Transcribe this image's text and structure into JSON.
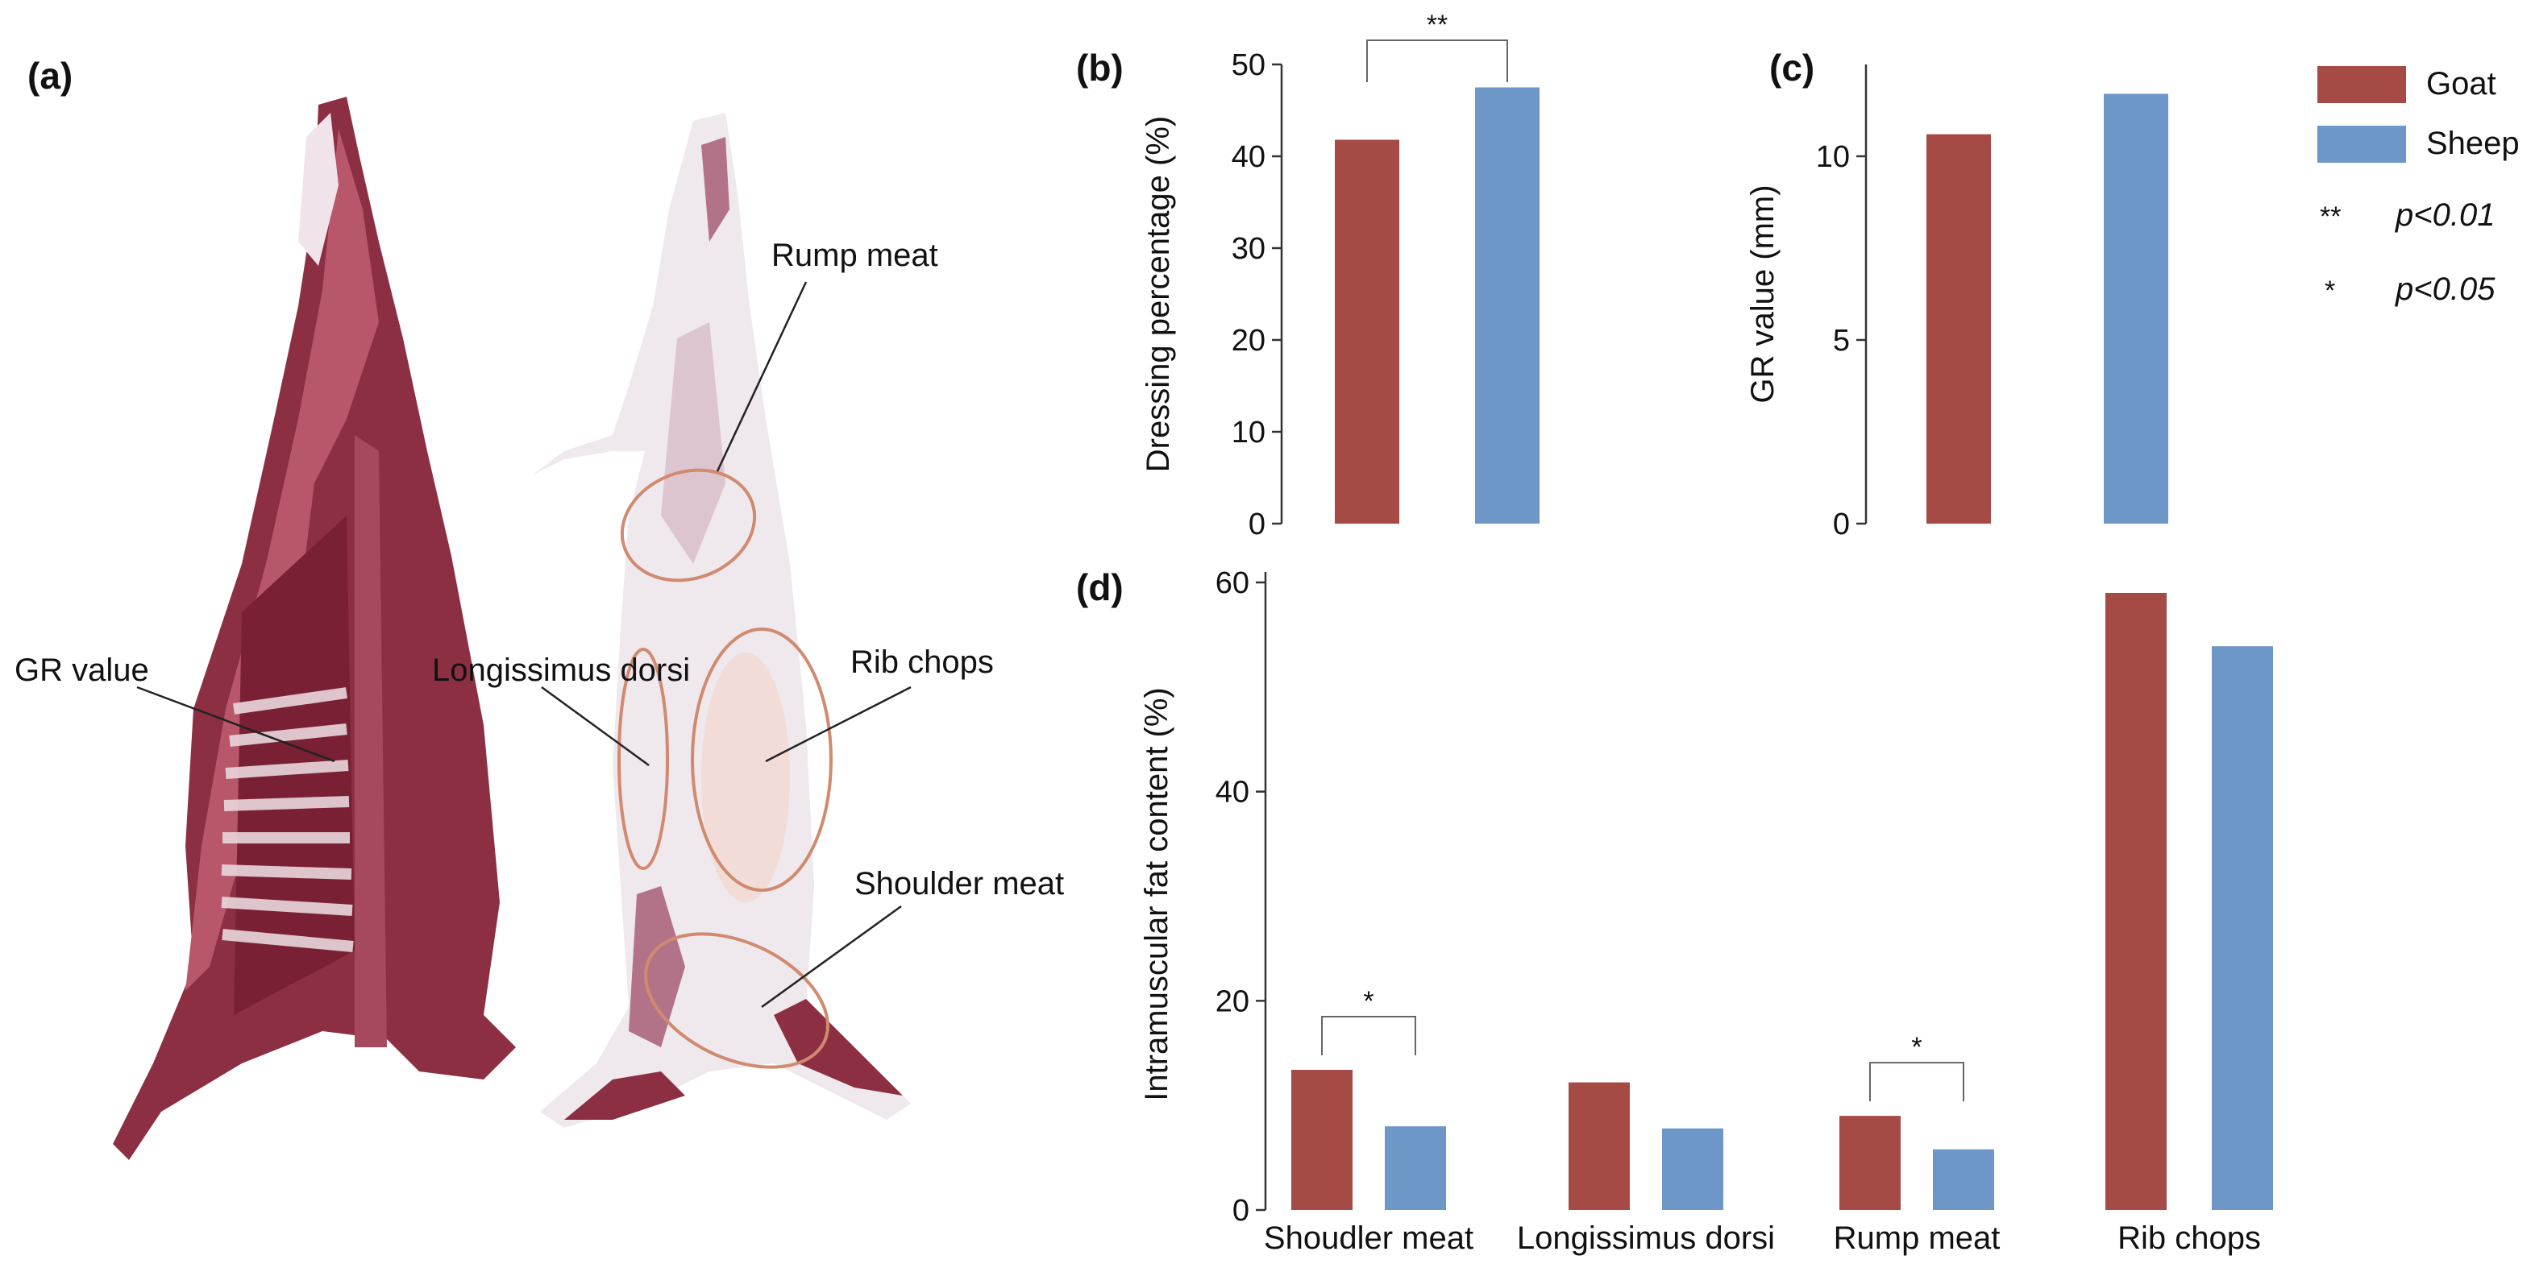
{
  "panels": {
    "a": {
      "letter": "(a)"
    },
    "b": {
      "letter": "(b)"
    },
    "c": {
      "letter": "(c)"
    },
    "d": {
      "letter": "(d)"
    }
  },
  "carcass_labels": {
    "gr_value": "GR value",
    "longissimus": "Longissimus dorsi",
    "rump": "Rump meat",
    "rib": "Rib chops",
    "shoulder": "Shoulder meat"
  },
  "legend": {
    "goat": "Goat",
    "sheep": "Sheep",
    "p01_stars": "**",
    "p01_text": "p<0.01",
    "p05_stars": "*",
    "p05_text": "p<0.05"
  },
  "colors": {
    "goat": "#A54A45",
    "sheep": "#6C97C6",
    "annotation_line": "#D08A70",
    "meat": "#8C2F42",
    "fat": "#EFE8EC"
  },
  "chart_data": [
    {
      "id": "b",
      "type": "bar",
      "title": "",
      "xlabel": "",
      "ylabel": "Dressing percentage  (%)",
      "categories": [
        ""
      ],
      "series": [
        {
          "name": "Goat",
          "values": [
            41.8
          ]
        },
        {
          "name": "Sheep",
          "values": [
            47.5
          ]
        }
      ],
      "ylim": [
        0,
        50
      ],
      "yticks": [
        0,
        10,
        20,
        30,
        40,
        50
      ],
      "significance": [
        {
          "label": "**",
          "between": [
            "Goat",
            "Sheep"
          ],
          "category": 0
        }
      ]
    },
    {
      "id": "c",
      "type": "bar",
      "title": "",
      "xlabel": "",
      "ylabel": "GR value (mm)",
      "categories": [
        ""
      ],
      "series": [
        {
          "name": "Goat",
          "values": [
            10.6
          ]
        },
        {
          "name": "Sheep",
          "values": [
            11.7
          ]
        }
      ],
      "ylim": [
        0,
        12.5
      ],
      "yticks": [
        0,
        5,
        10
      ],
      "significance": []
    },
    {
      "id": "d",
      "type": "bar",
      "title": "",
      "xlabel": "",
      "ylabel": "Intramuscular fat content (%)",
      "categories": [
        "Shoudler meat",
        "Longissimus dorsi",
        "Rump meat",
        "Rib chops"
      ],
      "series": [
        {
          "name": "Goat",
          "values": [
            13.4,
            12.2,
            9.0,
            59.0
          ]
        },
        {
          "name": "Sheep",
          "values": [
            8.0,
            7.8,
            5.8,
            53.9
          ]
        }
      ],
      "ylim": [
        0,
        61
      ],
      "yticks": [
        0,
        20,
        40,
        60
      ],
      "significance": [
        {
          "label": "*",
          "category": 0
        },
        {
          "label": "*",
          "category": 2
        }
      ]
    }
  ]
}
